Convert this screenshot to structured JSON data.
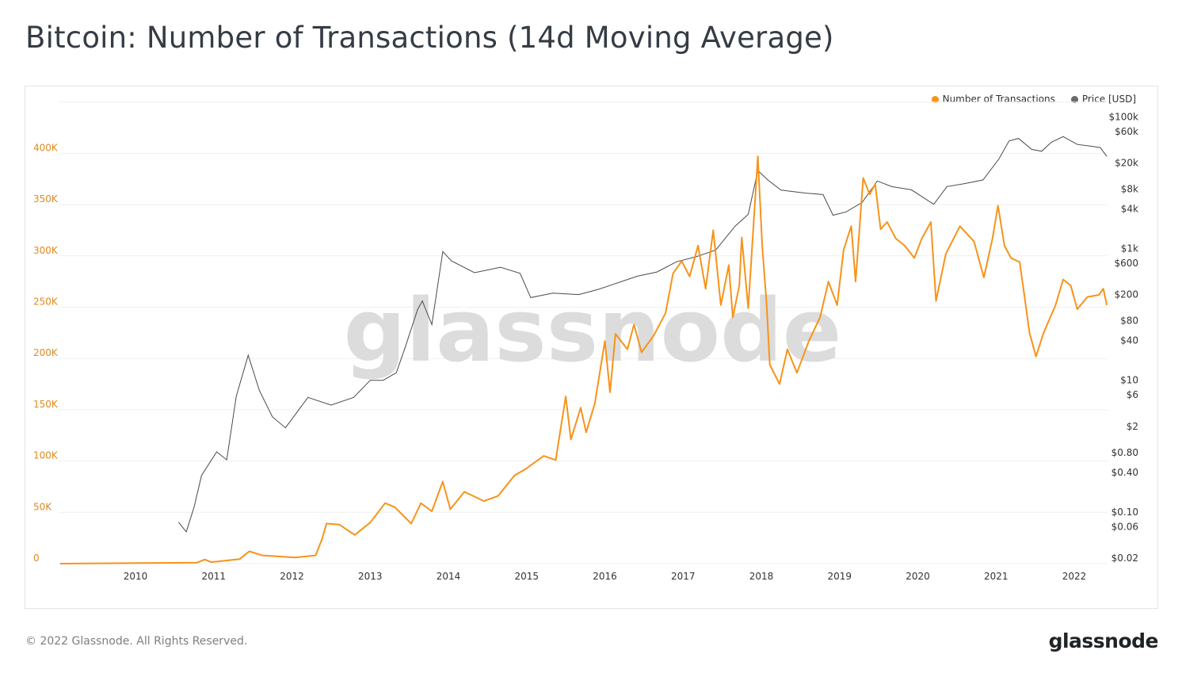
{
  "title": "Bitcoin: Number of Transactions (14d Moving Average)",
  "footer": "© 2022 Glassnode. All Rights Reserved.",
  "logo": "glassnode",
  "watermark": "glassnode",
  "colors": {
    "transactions": "#f7931a",
    "price": "#555555",
    "left_axis_text": "#e08a1e",
    "right_axis_text": "#333333"
  },
  "chart_data": {
    "type": "line",
    "title": "Bitcoin: Number of Transactions (14d Moving Average)",
    "legend_placement": "top-right",
    "grid": true,
    "x_ticks": [
      "2010",
      "2011",
      "2012",
      "2013",
      "2014",
      "2015",
      "2016",
      "2017",
      "2018",
      "2019",
      "2020",
      "2021",
      "2022"
    ],
    "xlim": [
      "2009-01-15",
      "2022-06-01"
    ],
    "left_axis": {
      "ticks": [
        0,
        50000,
        100000,
        150000,
        200000,
        250000,
        300000,
        350000,
        400000
      ],
      "tick_labels": [
        "0",
        "50K",
        "100K",
        "150K",
        "200K",
        "250K",
        "300K",
        "350K",
        "400K"
      ],
      "ylim": [
        0,
        450000
      ]
    },
    "right_axis": {
      "scale": "log",
      "ticks": [
        0.02,
        0.06,
        0.1,
        0.4,
        0.8,
        2,
        6,
        10,
        40,
        80,
        200,
        600,
        1000,
        4000,
        8000,
        20000,
        60000,
        100000
      ],
      "tick_labels": [
        "$0.02",
        "$0.06",
        "$0.10",
        "$0.40",
        "$0.80",
        "$2",
        "$6",
        "$10",
        "$40",
        "$80",
        "$200",
        "$600",
        "$1k",
        "$4k",
        "$8k",
        "$20k",
        "$60k",
        "$100k"
      ],
      "ylim": [
        0.02,
        100000
      ]
    },
    "series": [
      {
        "name": "Number of Transactions",
        "axis": "left",
        "points": [
          [
            "2009-01-15",
            0
          ],
          [
            "2010-10-15",
            1000
          ],
          [
            "2010-11-20",
            4000
          ],
          [
            "2010-12-20",
            1500
          ],
          [
            "2011-05-01",
            4500
          ],
          [
            "2011-06-15",
            12000
          ],
          [
            "2011-08-15",
            8000
          ],
          [
            "2012-01-15",
            6000
          ],
          [
            "2012-04-20",
            8000
          ],
          [
            "2012-05-20",
            24000
          ],
          [
            "2012-06-10",
            39000
          ],
          [
            "2012-08-10",
            38000
          ],
          [
            "2012-10-20",
            28000
          ],
          [
            "2013-01-01",
            40000
          ],
          [
            "2013-03-10",
            59000
          ],
          [
            "2013-04-25",
            55000
          ],
          [
            "2013-07-10",
            39000
          ],
          [
            "2013-08-25",
            59000
          ],
          [
            "2013-10-15",
            51000
          ],
          [
            "2013-12-05",
            80000
          ],
          [
            "2014-01-10",
            53000
          ],
          [
            "2014-03-15",
            70000
          ],
          [
            "2014-06-15",
            61000
          ],
          [
            "2014-08-20",
            66000
          ],
          [
            "2014-11-05",
            86000
          ],
          [
            "2015-01-01",
            93000
          ],
          [
            "2015-03-20",
            105000
          ],
          [
            "2015-05-15",
            101000
          ],
          [
            "2015-07-01",
            163000
          ],
          [
            "2015-07-25",
            121000
          ],
          [
            "2015-09-10",
            152000
          ],
          [
            "2015-10-05",
            128000
          ],
          [
            "2015-11-15",
            156000
          ],
          [
            "2016-01-01",
            217000
          ],
          [
            "2016-01-25",
            167000
          ],
          [
            "2016-02-20",
            224000
          ],
          [
            "2016-04-15",
            209000
          ],
          [
            "2016-05-15",
            233000
          ],
          [
            "2016-06-20",
            206000
          ],
          [
            "2016-08-15",
            222000
          ],
          [
            "2016-10-10",
            244000
          ],
          [
            "2016-11-15",
            283000
          ],
          [
            "2016-12-25",
            295000
          ],
          [
            "2017-02-01",
            280000
          ],
          [
            "2017-03-10",
            310000
          ],
          [
            "2017-04-15",
            268000
          ],
          [
            "2017-05-20",
            325000
          ],
          [
            "2017-06-25",
            252000
          ],
          [
            "2017-08-01",
            291000
          ],
          [
            "2017-08-20",
            240000
          ],
          [
            "2017-09-20",
            271000
          ],
          [
            "2017-10-01",
            318000
          ],
          [
            "2017-11-01",
            249000
          ],
          [
            "2017-12-15",
            397000
          ],
          [
            "2018-01-05",
            310000
          ],
          [
            "2018-01-25",
            255000
          ],
          [
            "2018-02-10",
            194000
          ],
          [
            "2018-03-25",
            175000
          ],
          [
            "2018-05-01",
            209000
          ],
          [
            "2018-06-15",
            186000
          ],
          [
            "2018-08-10",
            217000
          ],
          [
            "2018-10-01",
            240000
          ],
          [
            "2018-11-10",
            275000
          ],
          [
            "2018-12-20",
            252000
          ],
          [
            "2019-01-20",
            306000
          ],
          [
            "2019-02-25",
            329000
          ],
          [
            "2019-03-15",
            275000
          ],
          [
            "2019-04-20",
            376000
          ],
          [
            "2019-05-20",
            360000
          ],
          [
            "2019-06-15",
            370000
          ],
          [
            "2019-07-10",
            326000
          ],
          [
            "2019-08-10",
            333000
          ],
          [
            "2019-09-20",
            317000
          ],
          [
            "2019-11-01",
            310000
          ],
          [
            "2019-12-15",
            298000
          ],
          [
            "2020-01-20",
            317000
          ],
          [
            "2020-03-01",
            333000
          ],
          [
            "2020-03-25",
            256000
          ],
          [
            "2020-05-10",
            302000
          ],
          [
            "2020-07-15",
            329000
          ],
          [
            "2020-09-20",
            314000
          ],
          [
            "2020-11-05",
            279000
          ],
          [
            "2020-12-15",
            317000
          ],
          [
            "2021-01-10",
            349000
          ],
          [
            "2021-02-10",
            310000
          ],
          [
            "2021-03-10",
            298000
          ],
          [
            "2021-04-20",
            294000
          ],
          [
            "2021-05-15",
            256000
          ],
          [
            "2021-06-05",
            225000
          ],
          [
            "2021-07-05",
            202000
          ],
          [
            "2021-08-10",
            225000
          ],
          [
            "2021-10-05",
            252000
          ],
          [
            "2021-11-10",
            277000
          ],
          [
            "2021-12-15",
            271000
          ],
          [
            "2022-01-15",
            248000
          ],
          [
            "2022-03-01",
            260000
          ],
          [
            "2022-04-25",
            262000
          ],
          [
            "2022-05-15",
            268000
          ],
          [
            "2022-06-01",
            252000
          ]
        ]
      },
      {
        "name": "Price [USD]",
        "axis": "right",
        "points": [
          [
            "2010-07-20",
            0.07
          ],
          [
            "2010-08-25",
            0.05
          ],
          [
            "2010-10-01",
            0.12
          ],
          [
            "2010-11-05",
            0.36
          ],
          [
            "2011-01-15",
            0.82
          ],
          [
            "2011-03-01",
            0.62
          ],
          [
            "2011-04-15",
            5.7
          ],
          [
            "2011-06-10",
            24
          ],
          [
            "2011-08-01",
            7
          ],
          [
            "2011-10-01",
            2.8
          ],
          [
            "2011-12-01",
            1.9
          ],
          [
            "2012-03-15",
            5.5
          ],
          [
            "2012-07-01",
            4.2
          ],
          [
            "2012-10-15",
            5.5
          ],
          [
            "2013-01-01",
            10
          ],
          [
            "2013-03-01",
            10
          ],
          [
            "2013-05-01",
            13
          ],
          [
            "2013-06-10",
            30
          ],
          [
            "2013-08-10",
            120
          ],
          [
            "2013-09-01",
            160
          ],
          [
            "2013-10-15",
            70
          ],
          [
            "2013-12-05",
            900
          ],
          [
            "2014-01-15",
            650
          ],
          [
            "2014-05-01",
            430
          ],
          [
            "2014-09-01",
            520
          ],
          [
            "2014-12-01",
            420
          ],
          [
            "2015-01-20",
            180
          ],
          [
            "2015-05-01",
            210
          ],
          [
            "2015-09-01",
            200
          ],
          [
            "2015-12-01",
            240
          ],
          [
            "2016-06-01",
            380
          ],
          [
            "2016-09-01",
            440
          ],
          [
            "2016-12-01",
            630
          ],
          [
            "2017-03-01",
            750
          ],
          [
            "2017-06-01",
            950
          ],
          [
            "2017-09-01",
            2200
          ],
          [
            "2017-11-01",
            3300
          ],
          [
            "2017-12-15",
            15300
          ],
          [
            "2018-02-01",
            11000
          ],
          [
            "2018-04-01",
            7700
          ],
          [
            "2018-08-01",
            6900
          ],
          [
            "2018-10-15",
            6600
          ],
          [
            "2018-12-01",
            3200
          ],
          [
            "2019-02-01",
            3600
          ],
          [
            "2019-04-15",
            5000
          ],
          [
            "2019-06-25",
            10600
          ],
          [
            "2019-09-01",
            8700
          ],
          [
            "2019-12-01",
            7800
          ],
          [
            "2020-03-15",
            4700
          ],
          [
            "2020-05-15",
            8700
          ],
          [
            "2020-08-01",
            9600
          ],
          [
            "2020-11-01",
            11000
          ],
          [
            "2021-01-15",
            23000
          ],
          [
            "2021-03-01",
            43000
          ],
          [
            "2021-04-15",
            47000
          ],
          [
            "2021-06-15",
            32000
          ],
          [
            "2021-08-01",
            30000
          ],
          [
            "2021-09-15",
            41000
          ],
          [
            "2021-11-10",
            50000
          ],
          [
            "2022-01-15",
            38000
          ],
          [
            "2022-03-15",
            36000
          ],
          [
            "2022-05-01",
            34000
          ],
          [
            "2022-06-01",
            25000
          ]
        ]
      }
    ]
  }
}
